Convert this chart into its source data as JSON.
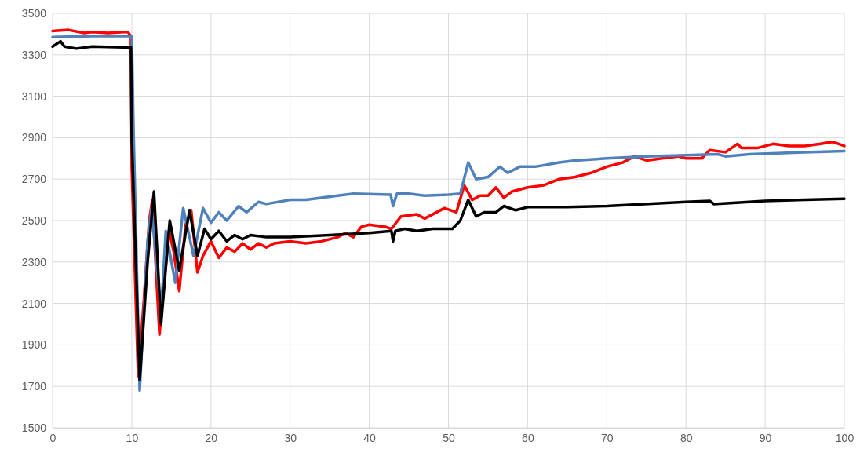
{
  "chart_data": {
    "type": "line",
    "xlim": [
      0,
      100
    ],
    "ylim": [
      1500,
      3500
    ],
    "xticks": [
      0,
      10,
      20,
      30,
      40,
      50,
      60,
      70,
      80,
      90,
      100
    ],
    "yticks": [
      1500,
      1700,
      1900,
      2100,
      2300,
      2500,
      2700,
      2900,
      3100,
      3300,
      3500
    ],
    "grid": true,
    "line_style": "solid",
    "marker": "none",
    "series": [
      {
        "color": "#ff0000",
        "x": [
          0,
          2,
          4,
          5,
          7,
          9,
          9.5,
          9.9,
          10,
          10.8,
          11.5,
          12.2,
          12.6,
          13.5,
          14.7,
          15.3,
          16,
          16.8,
          17.5,
          18.3,
          19,
          20,
          21,
          22,
          23,
          24,
          25,
          26,
          27,
          28,
          30,
          32,
          34,
          36,
          37,
          38,
          39,
          40,
          42,
          42.8,
          43.2,
          44,
          46,
          47,
          48,
          49.5,
          51,
          52,
          53,
          54,
          55,
          56,
          57,
          58,
          60,
          62,
          64,
          66,
          68,
          70,
          72,
          73.5,
          75,
          77,
          79,
          80,
          82,
          83,
          85,
          86.5,
          87,
          89,
          91,
          93,
          95,
          97,
          98.5,
          100
        ],
        "values": [
          3415,
          3420,
          3405,
          3410,
          3405,
          3410,
          3410,
          3390,
          2760,
          1750,
          2100,
          2500,
          2600,
          1950,
          2450,
          2350,
          2160,
          2480,
          2550,
          2250,
          2330,
          2400,
          2320,
          2370,
          2350,
          2390,
          2360,
          2390,
          2370,
          2390,
          2400,
          2390,
          2400,
          2420,
          2440,
          2420,
          2470,
          2480,
          2470,
          2460,
          2480,
          2520,
          2530,
          2510,
          2530,
          2560,
          2540,
          2670,
          2600,
          2620,
          2620,
          2660,
          2610,
          2640,
          2660,
          2670,
          2700,
          2710,
          2730,
          2760,
          2780,
          2810,
          2790,
          2800,
          2810,
          2800,
          2800,
          2840,
          2830,
          2870,
          2850,
          2850,
          2870,
          2860,
          2860,
          2870,
          2880,
          2860
        ]
      },
      {
        "color": "#4f81bd",
        "x": [
          0,
          5,
          10,
          10.2,
          11,
          12,
          12.5,
          13.7,
          14.3,
          15.5,
          16.5,
          17.8,
          19,
          20,
          21,
          22,
          23.5,
          24.5,
          26,
          27,
          30,
          32,
          36,
          38,
          42.7,
          43,
          43.5,
          45,
          47,
          50,
          51.5,
          52.5,
          53.5,
          55,
          56.5,
          57.5,
          59,
          61,
          64,
          66,
          70,
          75,
          80,
          84,
          85,
          88,
          95,
          100
        ],
        "values": [
          3385,
          3390,
          3390,
          2970,
          1680,
          2400,
          2560,
          2050,
          2450,
          2200,
          2560,
          2330,
          2560,
          2490,
          2540,
          2500,
          2570,
          2540,
          2590,
          2580,
          2600,
          2600,
          2620,
          2630,
          2625,
          2570,
          2630,
          2630,
          2620,
          2625,
          2630,
          2780,
          2700,
          2710,
          2760,
          2730,
          2760,
          2760,
          2780,
          2790,
          2800,
          2810,
          2815,
          2820,
          2810,
          2820,
          2830,
          2835
        ]
      },
      {
        "color": "#000000",
        "x": [
          0,
          1,
          1.5,
          3,
          5,
          9.9,
          10,
          11,
          12,
          12.8,
          13.7,
          14.8,
          16,
          17.3,
          18.3,
          19.2,
          20,
          21,
          22,
          23,
          24,
          25,
          27,
          30,
          35,
          40,
          42.8,
          43,
          43.3,
          44.5,
          46,
          48,
          50.5,
          51.5,
          52.5,
          53.5,
          54.5,
          56,
          57,
          58.5,
          60,
          65,
          70,
          80,
          83,
          83.5,
          90,
          100
        ],
        "values": [
          3340,
          3365,
          3340,
          3330,
          3340,
          3335,
          2900,
          1730,
          2300,
          2640,
          2000,
          2500,
          2260,
          2550,
          2330,
          2460,
          2410,
          2450,
          2400,
          2430,
          2410,
          2430,
          2420,
          2420,
          2430,
          2440,
          2450,
          2400,
          2450,
          2460,
          2450,
          2460,
          2460,
          2500,
          2600,
          2520,
          2540,
          2540,
          2570,
          2550,
          2565,
          2565,
          2570,
          2590,
          2595,
          2580,
          2595,
          2605
        ]
      }
    ]
  }
}
